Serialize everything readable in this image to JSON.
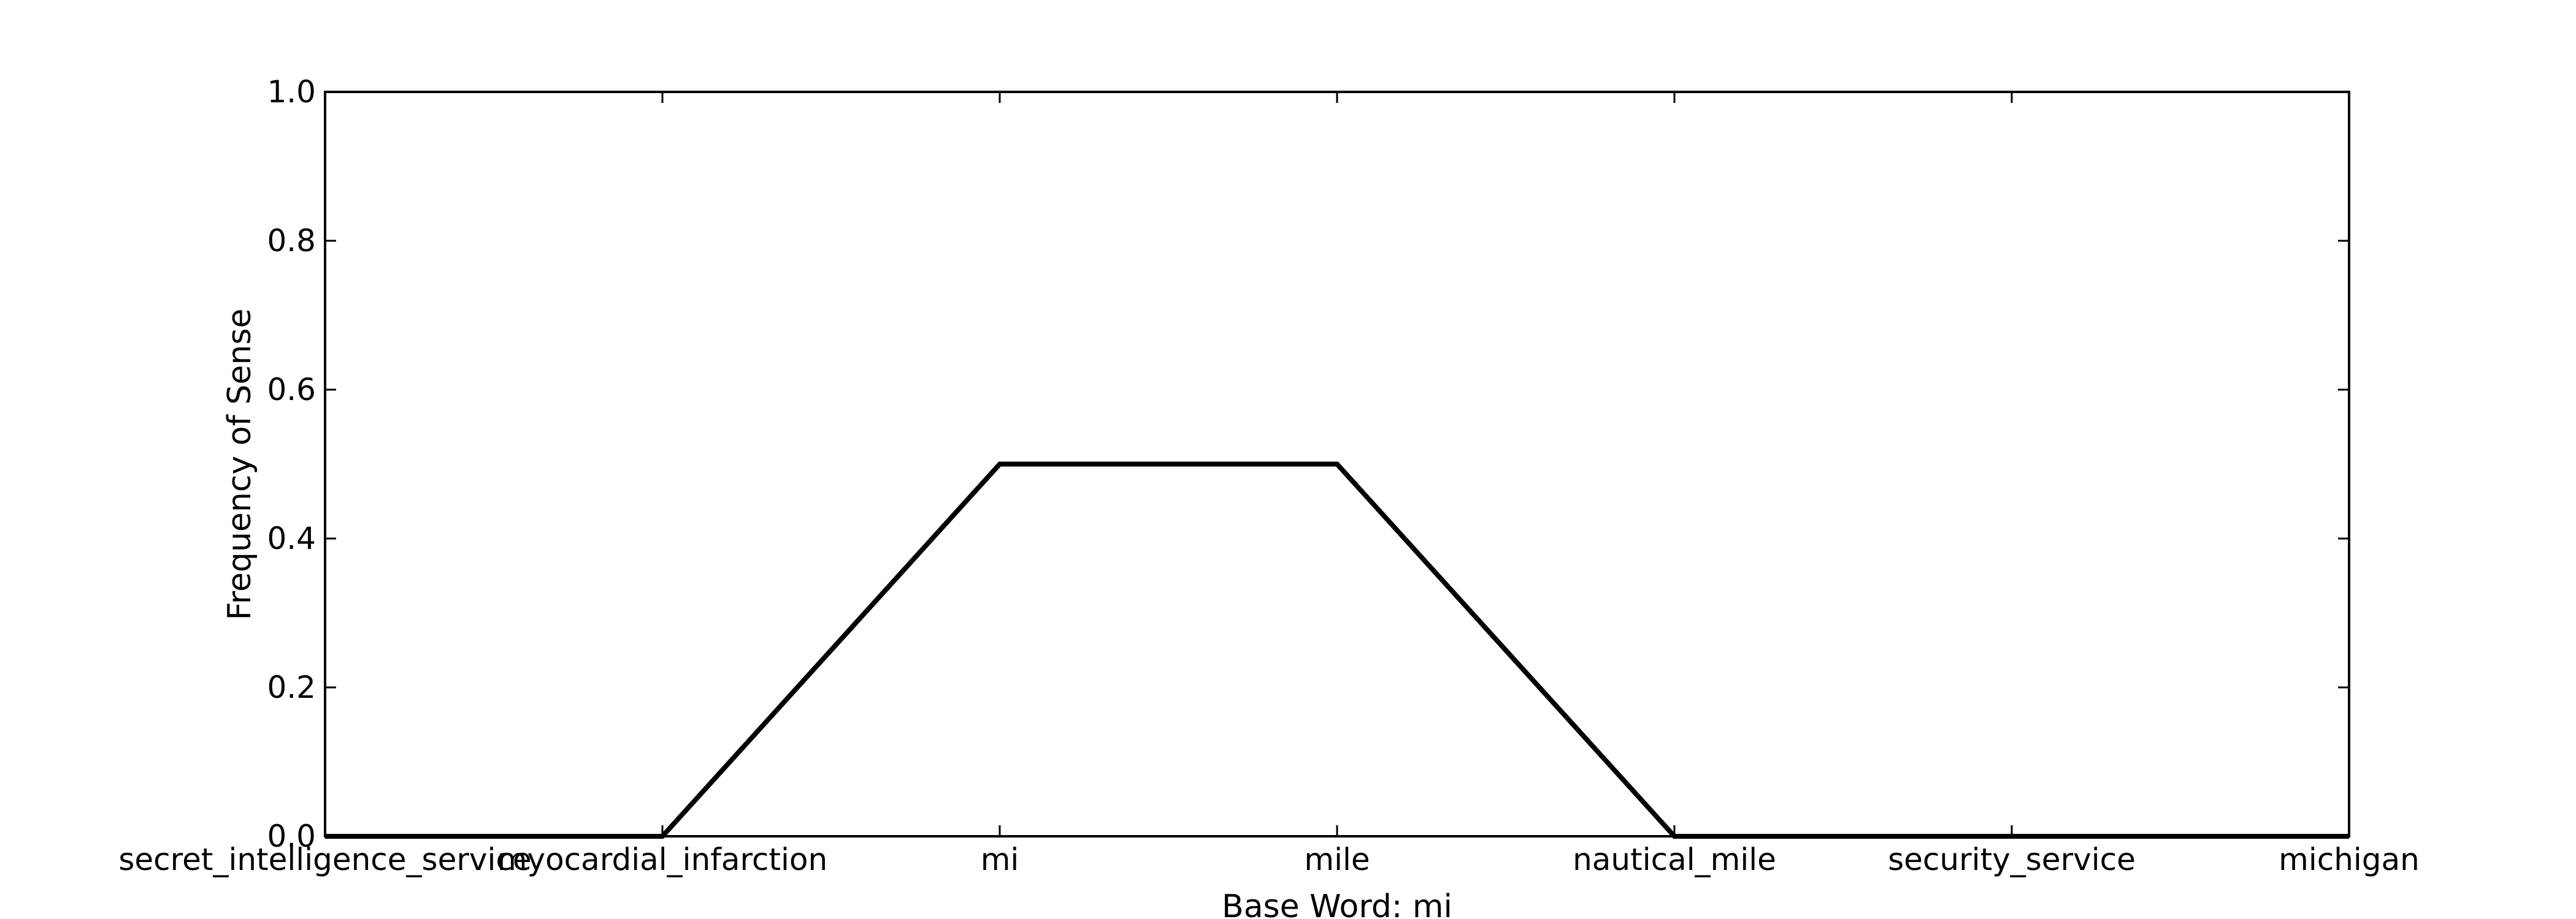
{
  "chart_data": {
    "type": "line",
    "title": "",
    "xlabel": "Base Word: mi",
    "ylabel": "Frequency of Sense",
    "categories": [
      "secret_intelligence_service",
      "myocardial_infarction",
      "mi",
      "mile",
      "nautical_mile",
      "security_service",
      "michigan"
    ],
    "values": [
      0.0,
      0.0,
      0.5,
      0.5,
      0.0,
      0.0,
      0.0
    ],
    "ylim": [
      0.0,
      1.0
    ],
    "yticks": [
      "0.0",
      "0.2",
      "0.4",
      "0.6",
      "0.8",
      "1.0"
    ],
    "grid": false,
    "legend": "none",
    "line_color": "#000000"
  }
}
